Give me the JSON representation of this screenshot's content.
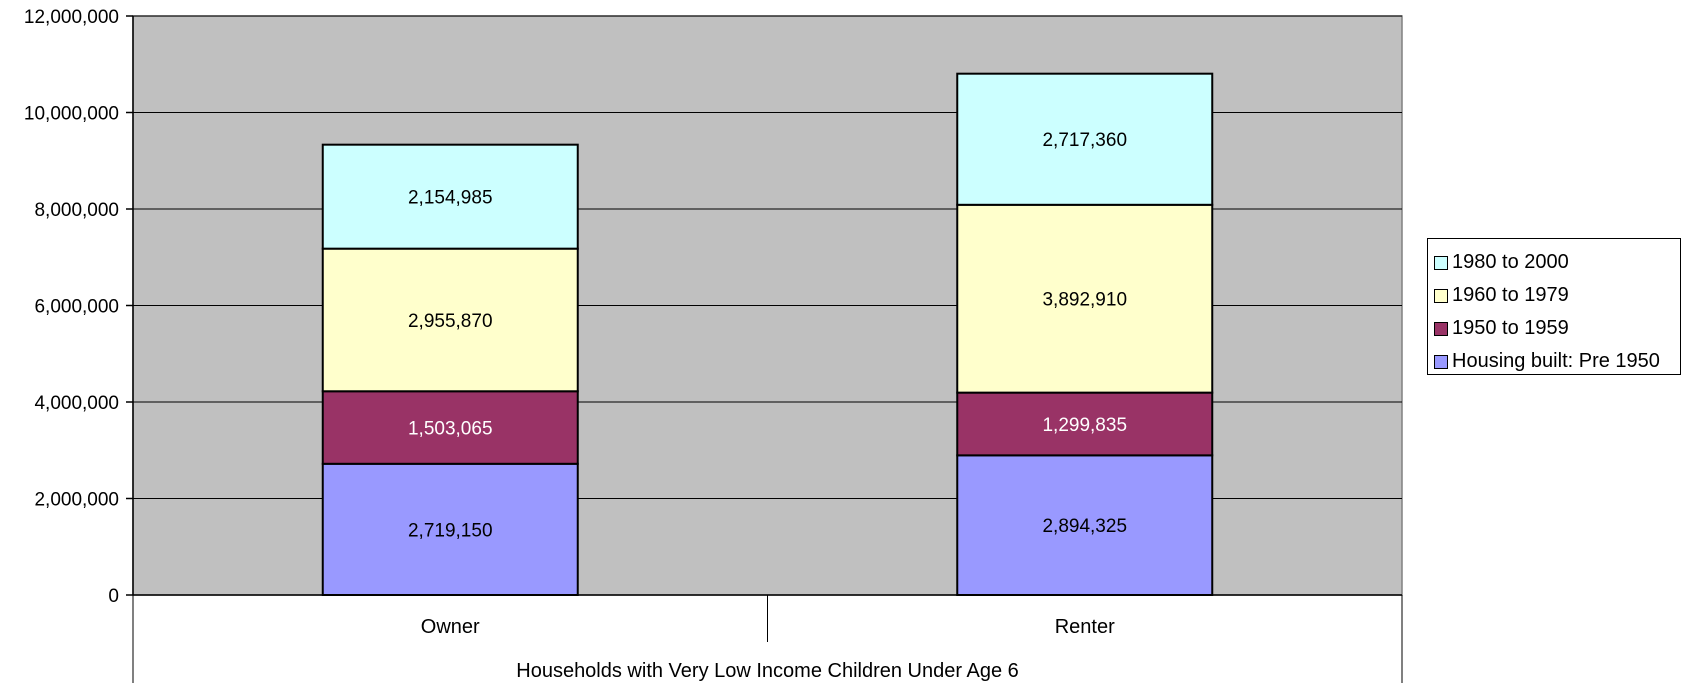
{
  "chart_data": {
    "type": "bar",
    "stacked": true,
    "categories": [
      "Owner",
      "Renter"
    ],
    "series": [
      {
        "name": "Housing built: Pre 1950",
        "values": [
          2719150,
          2894325
        ],
        "labels": [
          "2,719,150",
          "2,894,325"
        ],
        "color": "#9999ff",
        "label_color": "#000000"
      },
      {
        "name": "1950 to 1959",
        "values": [
          1503065,
          1299835
        ],
        "labels": [
          "1,503,065",
          "1,299,835"
        ],
        "color": "#993366",
        "label_color": "#ffffff"
      },
      {
        "name": "1960 to 1979",
        "values": [
          2955870,
          3892910
        ],
        "labels": [
          "2,955,870",
          "3,892,910"
        ],
        "color": "#ffffcc",
        "label_color": "#000000"
      },
      {
        "name": "1980 to 2000",
        "values": [
          2154985,
          2717360
        ],
        "labels": [
          "2,154,985",
          "2,717,360"
        ],
        "color": "#ccffff",
        "label_color": "#000000"
      }
    ],
    "ylim": [
      0,
      12000000
    ],
    "yticks": [
      0,
      2000000,
      4000000,
      6000000,
      8000000,
      10000000,
      12000000
    ],
    "ytick_labels": [
      "0",
      "2,000,000",
      "4,000,000",
      "6,000,000",
      "8,000,000",
      "10,000,000",
      "12,000,000"
    ],
    "xlabel": "Households with Very Low Income Children Under Age 6",
    "ylabel": "",
    "title": "",
    "grid": true,
    "plot_background": "#c0c0c0",
    "legend": {
      "position": "right",
      "order": [
        "1980 to 2000",
        "1960 to 1979",
        "1950 to 1959",
        "Housing built: Pre 1950"
      ]
    }
  }
}
